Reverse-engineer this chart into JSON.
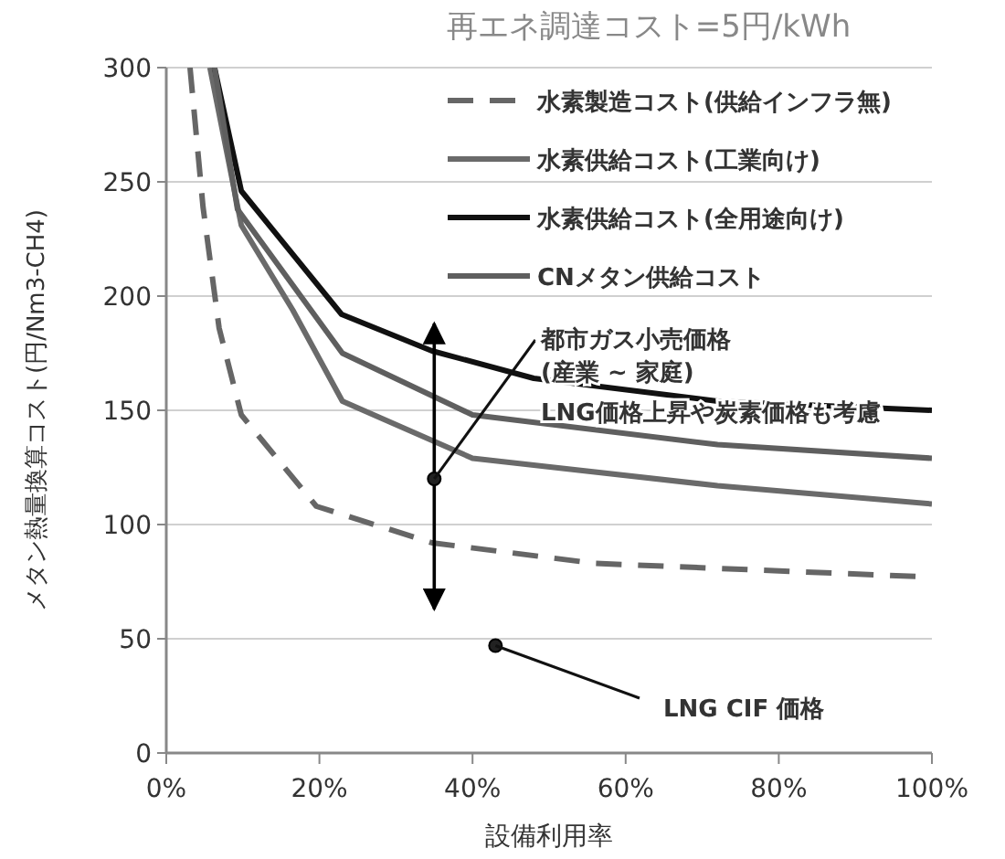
{
  "chart_data": {
    "type": "line",
    "title": "再エネ調達コスト=5円/kWh",
    "xlabel": "設備利用率",
    "ylabel": "メタン熱量換算コスト(円/Nm3-CH4)",
    "xlim": [
      0,
      100
    ],
    "ylim": [
      0,
      300
    ],
    "xticks": [
      {
        "value": 0,
        "label": "0%"
      },
      {
        "value": 20,
        "label": "20%"
      },
      {
        "value": 40,
        "label": "40%"
      },
      {
        "value": 60,
        "label": "60%"
      },
      {
        "value": 80,
        "label": "80%"
      },
      {
        "value": 100,
        "label": "100%"
      }
    ],
    "yticks": [
      0,
      50,
      100,
      150,
      200,
      250,
      300
    ],
    "grid": "y",
    "legend": "top right",
    "series": [
      {
        "name": "水素製造コスト(供給インフラ無)",
        "color": "#666666",
        "line_style": "dashed",
        "x": [
          3.1,
          4.8,
          6.9,
          9.8,
          19.6,
          34.7,
          56,
          100
        ],
        "values": [
          300,
          239,
          186,
          148,
          108,
          92,
          83,
          77
        ]
      },
      {
        "name": "水素供給コスト(工業向け)",
        "color": "#6a6a6a",
        "x": [
          5.7,
          9.8,
          16.5,
          23,
          40,
          72,
          100
        ],
        "values": [
          300,
          231,
          194,
          154,
          129,
          117,
          109
        ]
      },
      {
        "name": "水素供給コスト(全用途向け)",
        "color": "#111111",
        "x": [
          6.3,
          9.8,
          22.9,
          34.7,
          48,
          72,
          100
        ],
        "values": [
          300,
          246,
          192,
          176,
          164,
          154,
          150
        ]
      },
      {
        "name": "CNメタン供給コスト",
        "color": "#5f5f5f",
        "x": [
          6.3,
          9.3,
          23,
          40,
          72,
          100
        ],
        "values": [
          300,
          238,
          175,
          148,
          135,
          129
        ]
      },
      {
        "type": "scatter",
        "color": "#222222",
        "x": [
          35
        ],
        "values": [
          120
        ],
        "errors": [
          [
            63,
            188
          ]
        ]
      },
      {
        "type": "scatter",
        "color": "#222222",
        "x": [
          43
        ],
        "values": [
          47
        ]
      }
    ],
    "annotations": [
      {
        "text": "都市ガス小売価格\n(産業 ~ 家庭)",
        "x": 35,
        "y": 120
      },
      "LNG価格上昇や炭素価格も考慮",
      {
        "text": "LNG CIF 価格",
        "x": 43,
        "y": 47
      }
    ]
  }
}
